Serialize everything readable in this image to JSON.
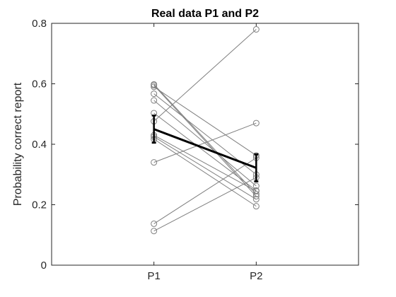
{
  "chart_data": {
    "type": "line",
    "title": "Real data P1 and P2",
    "xlabel": "",
    "ylabel": "Probability correct report",
    "categories": [
      "P1",
      "P2"
    ],
    "ylim": [
      0,
      0.8
    ],
    "xlim": [
      0,
      3
    ],
    "yticks": [
      0,
      0.2,
      0.4,
      0.6,
      0.8
    ],
    "ytick_labels": [
      "0",
      "0.2",
      "0.4",
      "0.6",
      "0.8"
    ],
    "grid": false,
    "subjects": [
      [
        0.598,
        0.235
      ],
      [
        0.595,
        0.228
      ],
      [
        0.59,
        0.363
      ],
      [
        0.567,
        0.3
      ],
      [
        0.545,
        0.262
      ],
      [
        0.503,
        0.247
      ],
      [
        0.476,
        0.78
      ],
      [
        0.43,
        0.245
      ],
      [
        0.425,
        0.218
      ],
      [
        0.417,
        0.195
      ],
      [
        0.34,
        0.47
      ],
      [
        0.137,
        0.355
      ],
      [
        0.113,
        0.29
      ]
    ],
    "mean": {
      "values": [
        0.45,
        0.322
      ],
      "error": [
        0.045,
        0.045
      ]
    },
    "colors": {
      "subject_line": "#7f7f7f",
      "marker": "#808080",
      "mean_line": "#000000"
    }
  }
}
